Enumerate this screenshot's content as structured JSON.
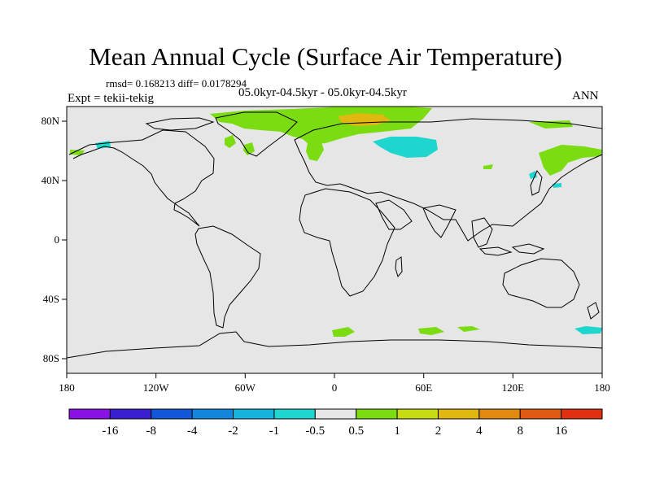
{
  "chart_data": {
    "type": "heatmap",
    "title": "Mean Annual Cycle (Surface Air Temperature)",
    "stats": "rmsd= 0.168213 diff= 0.0178294",
    "subtitle": "05.0kyr-04.5kyr - 05.0kyr-04.5kyr",
    "experiment": "Expt = tekii-tekig",
    "season": "ANN",
    "x_ticks": [
      "180",
      "120W",
      "60W",
      "0",
      "60E",
      "120E",
      "180"
    ],
    "y_ticks": [
      "80N",
      "40N",
      "0",
      "40S",
      "80S"
    ],
    "xlim": [
      -180,
      180
    ],
    "ylim": [
      -90,
      90
    ],
    "colorbar": {
      "labels": [
        "-16",
        "-8",
        "-4",
        "-2",
        "-1",
        "-0.5",
        "0.5",
        "1",
        "2",
        "4",
        "8",
        "16"
      ],
      "colors": [
        "#8a11e6",
        "#3a1fd1",
        "#1057d9",
        "#1286dc",
        "#16b4dc",
        "#1fd6cf",
        "#e6e6e6",
        "#7cdc12",
        "#c8dc12",
        "#e0b80f",
        "#e08a12",
        "#e05a12",
        "#e0300f"
      ]
    },
    "anomaly_regions": [
      {
        "name": "n-atlantic-arctic",
        "category": "0.5 to 1",
        "color": "#7cdc12"
      },
      {
        "name": "barents-sea-core",
        "category": "2 to 4",
        "color": "#e0b80f"
      },
      {
        "name": "west-siberia",
        "category": "-1 to -0.5",
        "color": "#1fd6cf"
      },
      {
        "name": "alaska",
        "category": "-1 to -0.5",
        "color": "#1fd6cf"
      },
      {
        "name": "east-asia",
        "category": "0.5 to 1",
        "color": "#7cdc12"
      },
      {
        "name": "southern-ocean",
        "category": "0.5 to 1",
        "color": "#7cdc12"
      },
      {
        "name": "sw-pacific",
        "category": "-1 to -0.5",
        "color": "#1fd6cf"
      }
    ]
  }
}
